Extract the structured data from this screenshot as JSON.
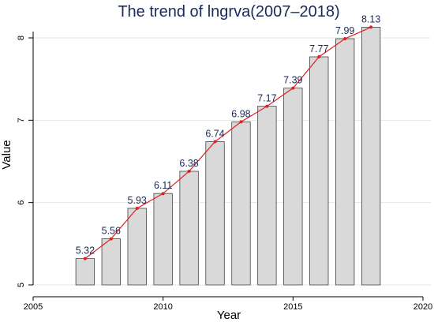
{
  "chart_data": {
    "type": "bar",
    "title": "The trend of lngrva(2007–2018)",
    "xlabel": "Year",
    "ylabel": "Value",
    "x": [
      2007,
      2008,
      2009,
      2010,
      2011,
      2012,
      2013,
      2014,
      2015,
      2016,
      2017,
      2018
    ],
    "values": [
      5.32,
      5.56,
      5.93,
      6.11,
      6.38,
      6.74,
      6.98,
      7.17,
      7.39,
      7.77,
      7.99,
      8.13
    ],
    "data_labels": [
      "5.32",
      "5.56",
      "5.93",
      "6.11",
      "6.38",
      "6.74",
      "6.98",
      "7.17",
      "7.39",
      "7.77",
      "7.99",
      "8.13"
    ],
    "xlim": [
      2005,
      2020
    ],
    "ylim": [
      5,
      8.2
    ],
    "xticks": [
      "2005",
      "2010",
      "2015",
      "2020"
    ],
    "yticks": [
      "5",
      "6",
      "7",
      "8"
    ],
    "grid": true,
    "overlay": "line",
    "bar_color": "#d9d9d9",
    "line_color": "#e02020"
  }
}
